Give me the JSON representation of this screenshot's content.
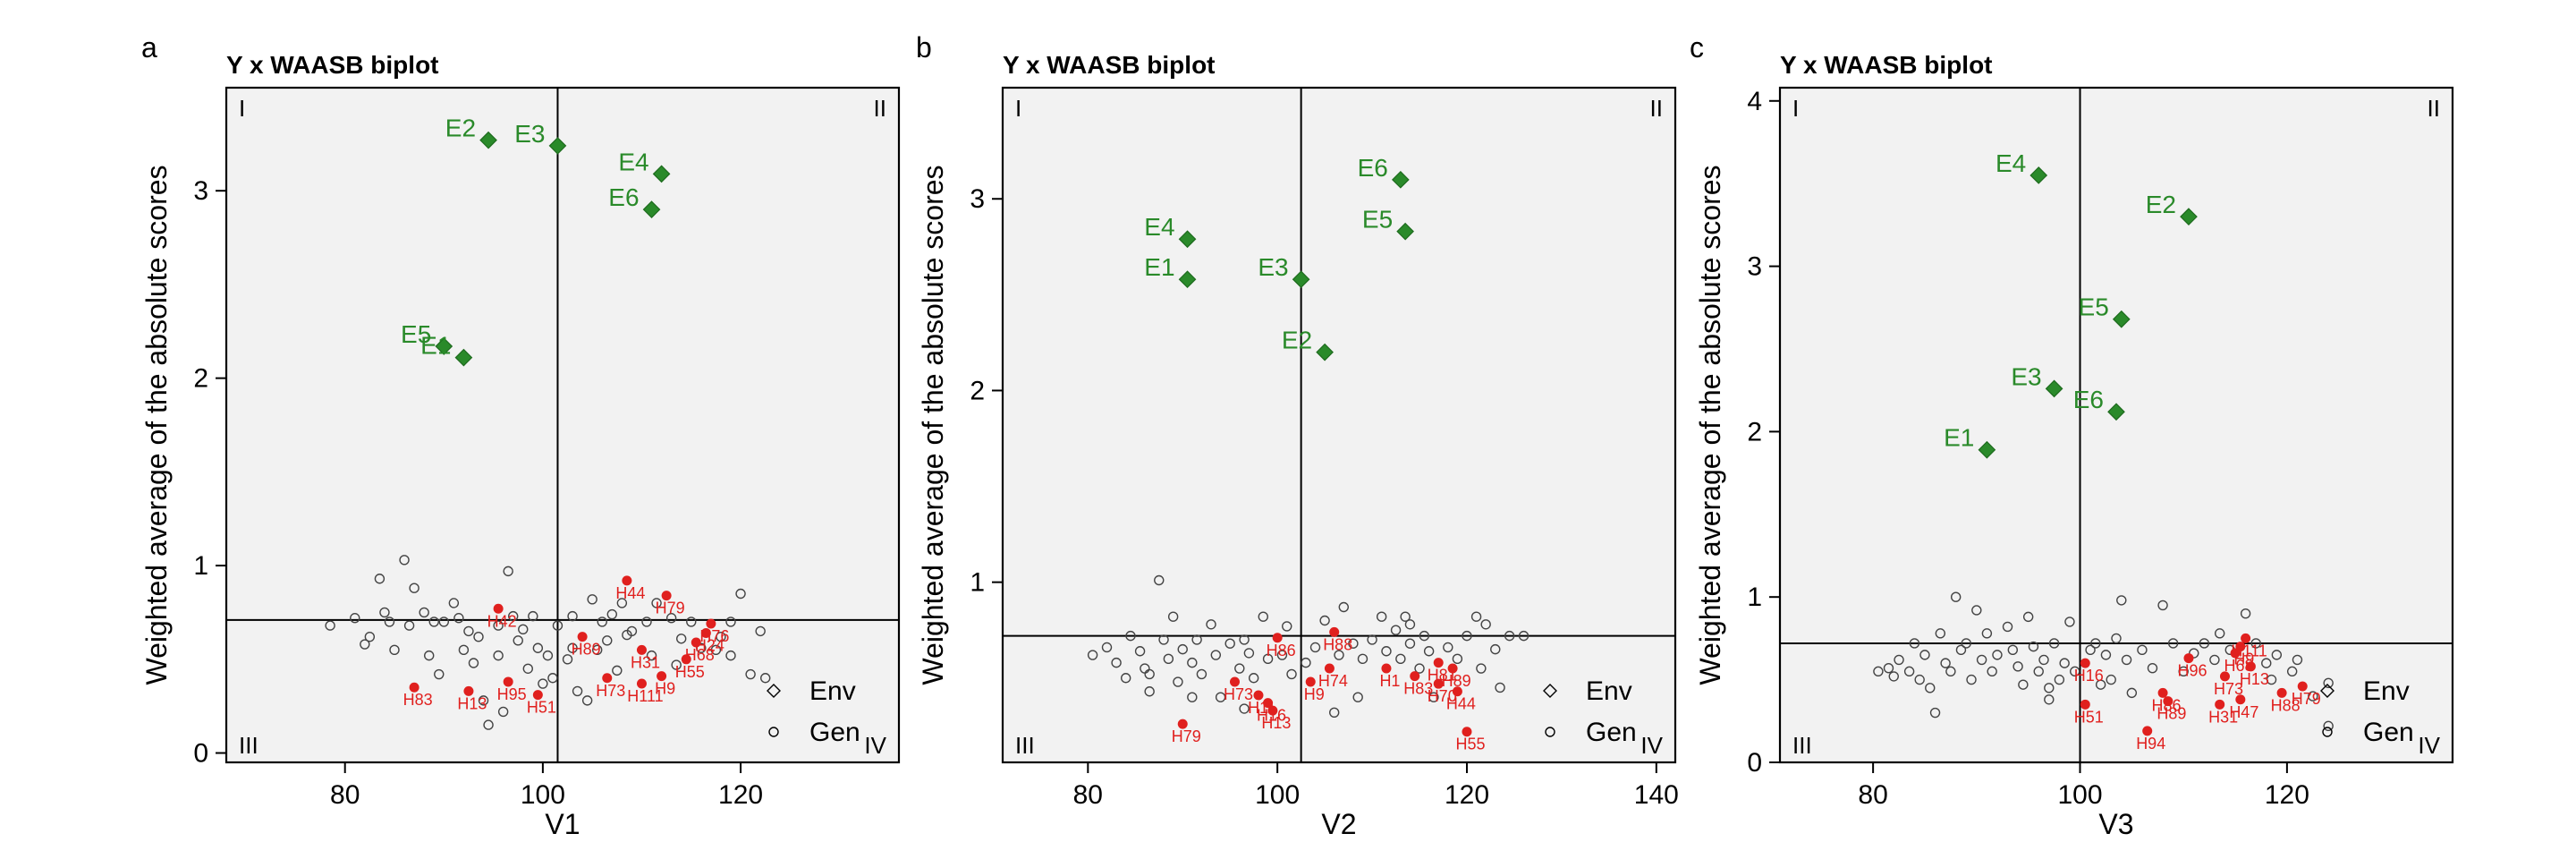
{
  "chart_data": [
    {
      "type": "scatter",
      "panel_label": "a",
      "title": "Y x WAASB biplot",
      "xlabel": "V1",
      "ylabel": "Weighted average of the absolute scores",
      "xlim": [
        68,
        136
      ],
      "ylim": [
        -0.05,
        3.55
      ],
      "xticks": [
        80,
        100,
        120
      ],
      "yticks": [
        0,
        1,
        2,
        3
      ],
      "mean_x": 101.5,
      "mean_y": 0.71,
      "quadrant_labels": [
        "I",
        "II",
        "III",
        "IV"
      ],
      "legend": [
        {
          "label": "Env"
        },
        {
          "label": "Gen"
        }
      ],
      "legend_position": "bottom-right",
      "env": [
        {
          "label": "E2",
          "x": 94.5,
          "y": 3.27
        },
        {
          "label": "E3",
          "x": 101.5,
          "y": 3.24
        },
        {
          "label": "E4",
          "x": 112.0,
          "y": 3.09
        },
        {
          "label": "E6",
          "x": 111.0,
          "y": 2.9
        },
        {
          "label": "E5",
          "x": 90.0,
          "y": 2.17
        },
        {
          "label": "E1",
          "x": 92.0,
          "y": 2.11
        }
      ],
      "gen_highlight": [
        {
          "label": "H44",
          "x": 108.5,
          "y": 0.92
        },
        {
          "label": "H79",
          "x": 112.5,
          "y": 0.84
        },
        {
          "label": "H42",
          "x": 95.5,
          "y": 0.77
        },
        {
          "label": "H76",
          "x": 117.0,
          "y": 0.69
        },
        {
          "label": "H24",
          "x": 116.5,
          "y": 0.64
        },
        {
          "label": "H89",
          "x": 104.0,
          "y": 0.62
        },
        {
          "label": "H68",
          "x": 115.5,
          "y": 0.59
        },
        {
          "label": "H31",
          "x": 110.0,
          "y": 0.55
        },
        {
          "label": "H55",
          "x": 114.5,
          "y": 0.5
        },
        {
          "label": "H9",
          "x": 112.0,
          "y": 0.41
        },
        {
          "label": "H73",
          "x": 106.5,
          "y": 0.4
        },
        {
          "label": "H111",
          "x": 110.0,
          "y": 0.37
        },
        {
          "label": "H95",
          "x": 96.5,
          "y": 0.38
        },
        {
          "label": "H13",
          "x": 92.5,
          "y": 0.33
        },
        {
          "label": "H83",
          "x": 87.0,
          "y": 0.35
        },
        {
          "label": "H51",
          "x": 99.5,
          "y": 0.31
        }
      ],
      "gen_other": [
        [
          78.5,
          0.68
        ],
        [
          81,
          0.72
        ],
        [
          82,
          0.58
        ],
        [
          82.5,
          0.62
        ],
        [
          83.5,
          0.93
        ],
        [
          84,
          0.75
        ],
        [
          84.5,
          0.7
        ],
        [
          85,
          0.55
        ],
        [
          86,
          1.03
        ],
        [
          86.5,
          0.68
        ],
        [
          87,
          0.88
        ],
        [
          88,
          0.75
        ],
        [
          88.5,
          0.52
        ],
        [
          89.5,
          0.42
        ],
        [
          90,
          0.7
        ],
        [
          91,
          0.8
        ],
        [
          91.5,
          0.72
        ],
        [
          92,
          0.55
        ],
        [
          92.5,
          0.65
        ],
        [
          93,
          0.48
        ],
        [
          93.5,
          0.62
        ],
        [
          94,
          0.28
        ],
        [
          94.5,
          0.15
        ],
        [
          95.5,
          0.52
        ],
        [
          96,
          0.22
        ],
        [
          96.5,
          0.97
        ],
        [
          97,
          0.73
        ],
        [
          97.5,
          0.6
        ],
        [
          98,
          0.66
        ],
        [
          98.5,
          0.45
        ],
        [
          99,
          0.73
        ],
        [
          99.5,
          0.56
        ],
        [
          100,
          0.37
        ],
        [
          100.5,
          0.52
        ],
        [
          101,
          0.4
        ],
        [
          101.5,
          0.68
        ],
        [
          102.5,
          0.5
        ],
        [
          103,
          0.56
        ],
        [
          103.5,
          0.33
        ],
        [
          104.5,
          0.28
        ],
        [
          105,
          0.82
        ],
        [
          105.5,
          0.55
        ],
        [
          106,
          0.7
        ],
        [
          106.5,
          0.6
        ],
        [
          107,
          0.74
        ],
        [
          107.5,
          0.44
        ],
        [
          108,
          0.8
        ],
        [
          109,
          0.65
        ],
        [
          110.5,
          0.7
        ],
        [
          111,
          0.52
        ],
        [
          111.5,
          0.8
        ],
        [
          113,
          0.72
        ],
        [
          113.5,
          0.47
        ],
        [
          114,
          0.61
        ],
        [
          115,
          0.7
        ],
        [
          116,
          0.56
        ],
        [
          117.5,
          0.55
        ],
        [
          118,
          0.62
        ],
        [
          119,
          0.52
        ],
        [
          120,
          0.85
        ],
        [
          121,
          0.42
        ],
        [
          122.5,
          0.4
        ],
        [
          122,
          0.65
        ],
        [
          119,
          0.7
        ],
        [
          108.5,
          0.63
        ],
        [
          103,
          0.73
        ],
        [
          95.5,
          0.68
        ],
        [
          89,
          0.7
        ]
      ]
    },
    {
      "type": "scatter",
      "panel_label": "b",
      "title": "Y x WAASB biplot",
      "xlabel": "V2",
      "ylabel": "Weighted average of the absolute scores",
      "xlim": [
        71,
        142
      ],
      "ylim": [
        0.06,
        3.58
      ],
      "xticks": [
        80,
        100,
        120,
        140
      ],
      "yticks": [
        1,
        2,
        3
      ],
      "mean_x": 102.5,
      "mean_y": 0.72,
      "quadrant_labels": [
        "I",
        "II",
        "III",
        "IV"
      ],
      "legend": [
        {
          "label": "Env"
        },
        {
          "label": "Gen"
        }
      ],
      "legend_position": "bottom-right",
      "env": [
        {
          "label": "E6",
          "x": 113.0,
          "y": 3.1
        },
        {
          "label": "E5",
          "x": 113.5,
          "y": 2.83
        },
        {
          "label": "E4",
          "x": 90.5,
          "y": 2.79
        },
        {
          "label": "E1",
          "x": 90.5,
          "y": 2.58
        },
        {
          "label": "E3",
          "x": 102.5,
          "y": 2.58
        },
        {
          "label": "E2",
          "x": 105.0,
          "y": 2.2
        }
      ],
      "gen_highlight": [
        {
          "label": "H88",
          "x": 106.0,
          "y": 0.74
        },
        {
          "label": "H86",
          "x": 100.0,
          "y": 0.71
        },
        {
          "label": "H74",
          "x": 105.5,
          "y": 0.55
        },
        {
          "label": "H81",
          "x": 117.0,
          "y": 0.58
        },
        {
          "label": "H89",
          "x": 118.5,
          "y": 0.55
        },
        {
          "label": "H1",
          "x": 111.5,
          "y": 0.55
        },
        {
          "label": "H83",
          "x": 114.5,
          "y": 0.51
        },
        {
          "label": "H9",
          "x": 103.5,
          "y": 0.48
        },
        {
          "label": "H70",
          "x": 117.0,
          "y": 0.47
        },
        {
          "label": "H44",
          "x": 119.0,
          "y": 0.43
        },
        {
          "label": "H73",
          "x": 95.5,
          "y": 0.48
        },
        {
          "label": "H11",
          "x": 98.0,
          "y": 0.41
        },
        {
          "label": "H16",
          "x": 99.0,
          "y": 0.37
        },
        {
          "label": "H13",
          "x": 99.5,
          "y": 0.33
        },
        {
          "label": "H79",
          "x": 90.0,
          "y": 0.26
        },
        {
          "label": "H55",
          "x": 120.0,
          "y": 0.22
        }
      ],
      "gen_other": [
        [
          80.5,
          0.62
        ],
        [
          82,
          0.66
        ],
        [
          83,
          0.58
        ],
        [
          84,
          0.5
        ],
        [
          84.5,
          0.72
        ],
        [
          85.5,
          0.64
        ],
        [
          86,
          0.55
        ],
        [
          86.5,
          0.43
        ],
        [
          87.5,
          1.01
        ],
        [
          88,
          0.7
        ],
        [
          88.5,
          0.6
        ],
        [
          89,
          0.82
        ],
        [
          89.5,
          0.48
        ],
        [
          90,
          0.65
        ],
        [
          91,
          0.58
        ],
        [
          91.5,
          0.7
        ],
        [
          92,
          0.52
        ],
        [
          93,
          0.78
        ],
        [
          93.5,
          0.62
        ],
        [
          94,
          0.4
        ],
        [
          95,
          0.68
        ],
        [
          96,
          0.55
        ],
        [
          96.5,
          0.7
        ],
        [
          97,
          0.63
        ],
        [
          97.5,
          0.5
        ],
        [
          98.5,
          0.82
        ],
        [
          99,
          0.6
        ],
        [
          100.5,
          0.62
        ],
        [
          101,
          0.77
        ],
        [
          101.5,
          0.52
        ],
        [
          104,
          0.66
        ],
        [
          105,
          0.8
        ],
        [
          106.5,
          0.62
        ],
        [
          107,
          0.87
        ],
        [
          108,
          0.68
        ],
        [
          108.5,
          0.4
        ],
        [
          109,
          0.6
        ],
        [
          110,
          0.7
        ],
        [
          111,
          0.82
        ],
        [
          111.5,
          0.64
        ],
        [
          112.5,
          0.75
        ],
        [
          113,
          0.6
        ],
        [
          113.5,
          0.82
        ],
        [
          114,
          0.68
        ],
        [
          115,
          0.55
        ],
        [
          115.5,
          0.72
        ],
        [
          116,
          0.64
        ],
        [
          116.5,
          0.4
        ],
        [
          118,
          0.66
        ],
        [
          119,
          0.6
        ],
        [
          120,
          0.72
        ],
        [
          121,
          0.82
        ],
        [
          121.5,
          0.55
        ],
        [
          122,
          0.78
        ],
        [
          123,
          0.65
        ],
        [
          123.5,
          0.45
        ],
        [
          124.5,
          0.72
        ],
        [
          126,
          0.72
        ],
        [
          106,
          0.32
        ],
        [
          96.5,
          0.34
        ],
        [
          103,
          0.58
        ],
        [
          114,
          0.78
        ],
        [
          91,
          0.4
        ],
        [
          86.5,
          0.52
        ]
      ]
    },
    {
      "type": "scatter",
      "panel_label": "c",
      "title": "Y x WAASB biplot",
      "xlabel": "V3",
      "ylabel": "Weighted average of the absolute scores",
      "xlim": [
        71,
        136
      ],
      "ylim": [
        0,
        4.08
      ],
      "xticks": [
        80,
        100,
        120
      ],
      "yticks": [
        0,
        1,
        2,
        3,
        4
      ],
      "mean_x": 100.0,
      "mean_y": 0.72,
      "quadrant_labels": [
        "I",
        "II",
        "III",
        "IV"
      ],
      "legend": [
        {
          "label": "Env"
        },
        {
          "label": "Gen"
        }
      ],
      "legend_position": "bottom-right",
      "env": [
        {
          "label": "E4",
          "x": 96.0,
          "y": 3.55
        },
        {
          "label": "E2",
          "x": 110.5,
          "y": 3.3
        },
        {
          "label": "E5",
          "x": 104.0,
          "y": 2.68
        },
        {
          "label": "E3",
          "x": 97.5,
          "y": 2.26
        },
        {
          "label": "E6",
          "x": 103.5,
          "y": 2.12
        },
        {
          "label": "E1",
          "x": 91.0,
          "y": 1.89
        }
      ],
      "gen_highlight": [
        {
          "label": "H111",
          "x": 116.0,
          "y": 0.75
        },
        {
          "label": "H9",
          "x": 115.5,
          "y": 0.7
        },
        {
          "label": "H68",
          "x": 115.0,
          "y": 0.66
        },
        {
          "label": "H96",
          "x": 110.5,
          "y": 0.63
        },
        {
          "label": "H13",
          "x": 116.5,
          "y": 0.58
        },
        {
          "label": "H16",
          "x": 100.5,
          "y": 0.6
        },
        {
          "label": "H73",
          "x": 114.0,
          "y": 0.52
        },
        {
          "label": "H88",
          "x": 119.5,
          "y": 0.42
        },
        {
          "label": "H79",
          "x": 121.5,
          "y": 0.46
        },
        {
          "label": "H47",
          "x": 115.5,
          "y": 0.38
        },
        {
          "label": "H31",
          "x": 113.5,
          "y": 0.35
        },
        {
          "label": "H89",
          "x": 108.5,
          "y": 0.37
        },
        {
          "label": "H86",
          "x": 108.0,
          "y": 0.42
        },
        {
          "label": "H51",
          "x": 100.5,
          "y": 0.35
        },
        {
          "label": "H94",
          "x": 106.5,
          "y": 0.19
        }
      ],
      "gen_other": [
        [
          81.5,
          0.57
        ],
        [
          82.5,
          0.62
        ],
        [
          83.5,
          0.55
        ],
        [
          84,
          0.72
        ],
        [
          84.5,
          0.5
        ],
        [
          85,
          0.65
        ],
        [
          85.5,
          0.45
        ],
        [
          86,
          0.3
        ],
        [
          86.5,
          0.78
        ],
        [
          87,
          0.6
        ],
        [
          87.5,
          0.55
        ],
        [
          88,
          1.0
        ],
        [
          88.5,
          0.68
        ],
        [
          89,
          0.72
        ],
        [
          89.5,
          0.5
        ],
        [
          90,
          0.92
        ],
        [
          90.5,
          0.62
        ],
        [
          91,
          0.78
        ],
        [
          91.5,
          0.55
        ],
        [
          92,
          0.65
        ],
        [
          93,
          0.82
        ],
        [
          93.5,
          0.68
        ],
        [
          94,
          0.58
        ],
        [
          94.5,
          0.47
        ],
        [
          95,
          0.88
        ],
        [
          95.5,
          0.7
        ],
        [
          96,
          0.55
        ],
        [
          96.5,
          0.62
        ],
        [
          97,
          0.38
        ],
        [
          97.5,
          0.72
        ],
        [
          98,
          0.5
        ],
        [
          98.5,
          0.6
        ],
        [
          99,
          0.85
        ],
        [
          99.5,
          0.55
        ],
        [
          101,
          0.68
        ],
        [
          101.5,
          0.72
        ],
        [
          102,
          0.47
        ],
        [
          102.5,
          0.65
        ],
        [
          103,
          0.5
        ],
        [
          103.5,
          0.75
        ],
        [
          104,
          0.98
        ],
        [
          104.5,
          0.62
        ],
        [
          105,
          0.42
        ],
        [
          106,
          0.68
        ],
        [
          107,
          0.57
        ],
        [
          108,
          0.95
        ],
        [
          109,
          0.72
        ],
        [
          110,
          0.55
        ],
        [
          111,
          0.66
        ],
        [
          112,
          0.72
        ],
        [
          113,
          0.62
        ],
        [
          113.5,
          0.78
        ],
        [
          114.5,
          0.68
        ],
        [
          116,
          0.9
        ],
        [
          117,
          0.72
        ],
        [
          118,
          0.6
        ],
        [
          118.5,
          0.5
        ],
        [
          119,
          0.65
        ],
        [
          120.5,
          0.55
        ],
        [
          121,
          0.62
        ],
        [
          122.5,
          0.4
        ],
        [
          124,
          0.22
        ],
        [
          124,
          0.48
        ],
        [
          80.5,
          0.55
        ],
        [
          82,
          0.52
        ],
        [
          97,
          0.45
        ]
      ]
    }
  ]
}
